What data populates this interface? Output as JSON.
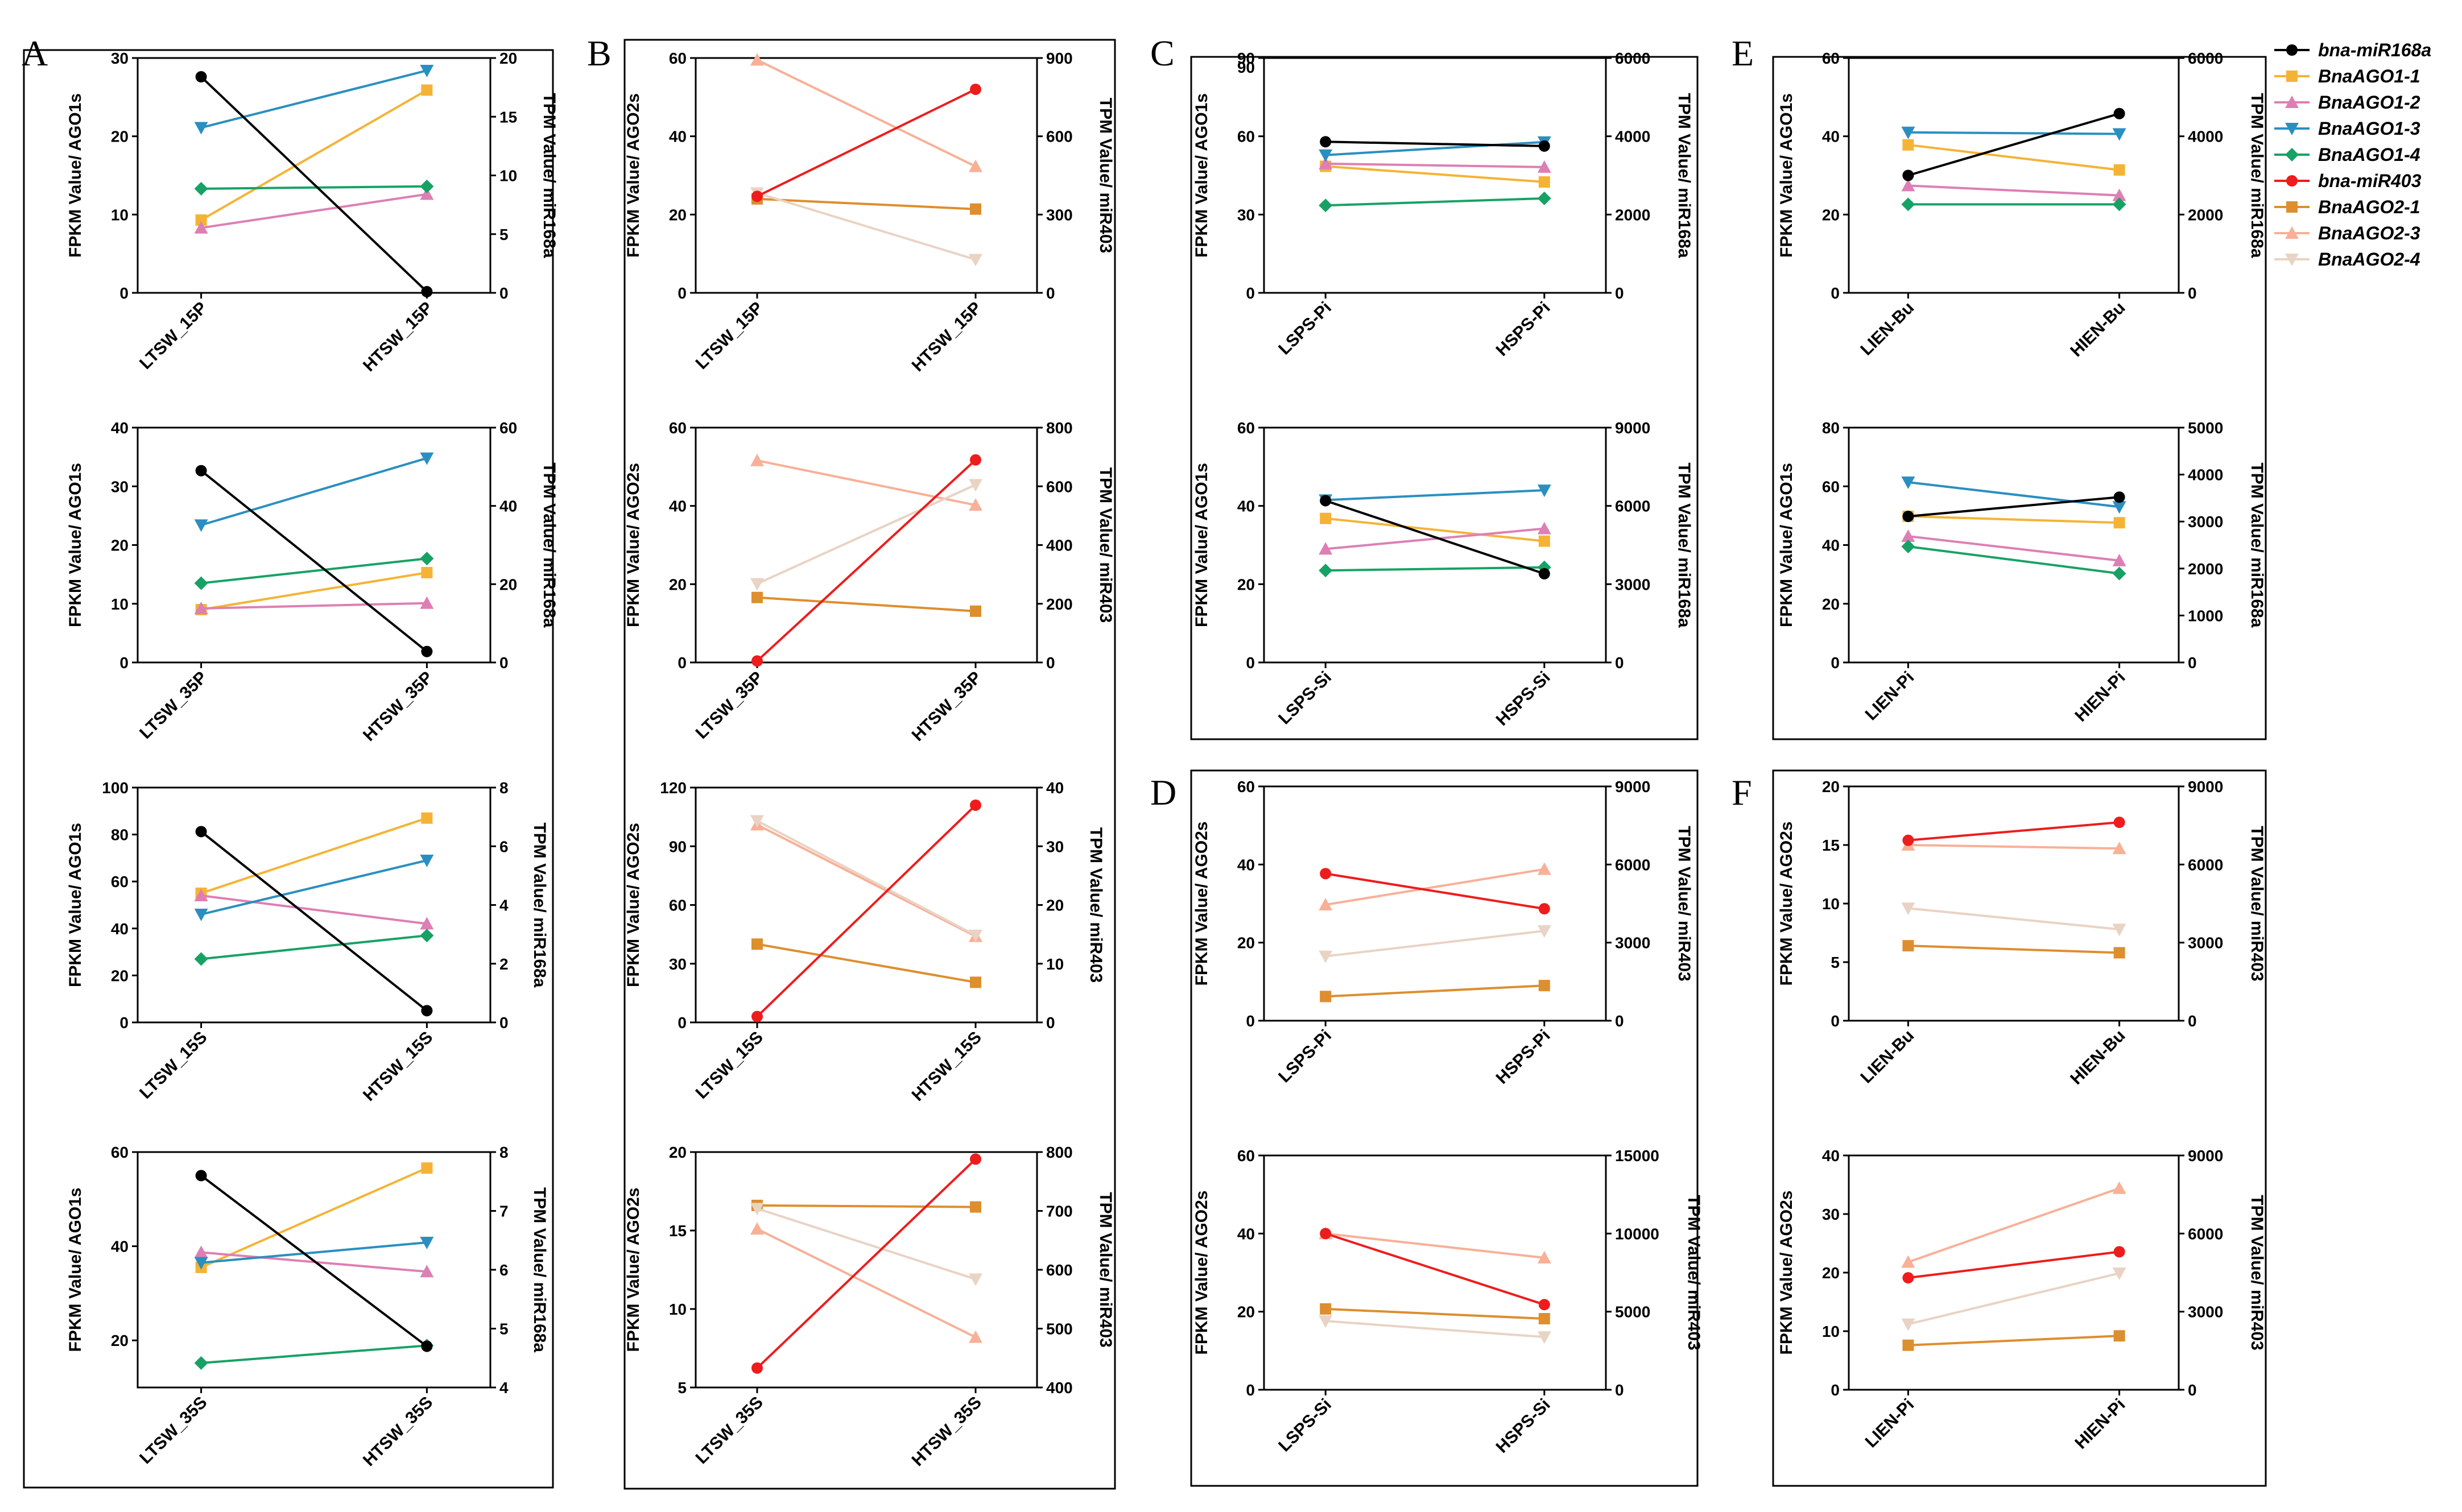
{
  "legend": [
    {
      "key": "mir168",
      "name": "bna-miR168a",
      "color": "#000000",
      "marker": "circle"
    },
    {
      "key": "ago11",
      "name": "BnaAGO1-1",
      "color": "#F5B335",
      "marker": "square"
    },
    {
      "key": "ago12",
      "name": "BnaAGO1-2",
      "color": "#DD7FB4",
      "marker": "triangle-up"
    },
    {
      "key": "ago13",
      "name": "BnaAGO1-3",
      "color": "#2A8FC0",
      "marker": "triangle-down"
    },
    {
      "key": "ago14",
      "name": "BnaAGO1-4",
      "color": "#17A265",
      "marker": "diamond"
    },
    {
      "key": "mir403",
      "name": "bna-miR403",
      "color": "#EE1C1C",
      "marker": "circle"
    },
    {
      "key": "ago21",
      "name": "BnaAGO2-1",
      "color": "#DD8E2F",
      "marker": "square"
    },
    {
      "key": "ago23",
      "name": "BnaAGO2-3",
      "color": "#F8B097",
      "marker": "triangle-up"
    },
    {
      "key": "ago24",
      "name": "BnaAGO2-4",
      "color": "#E9D3C4",
      "marker": "triangle-down"
    }
  ],
  "panels": [
    {
      "letter": "A"
    },
    {
      "letter": "B"
    },
    {
      "letter": "C"
    },
    {
      "letter": "D"
    },
    {
      "letter": "E"
    },
    {
      "letter": "F"
    }
  ],
  "chart_data": [
    {
      "type": "line",
      "panel": "A",
      "categories": [
        "LTSW_15P",
        "HTSW_15P"
      ],
      "ylabel": "FPKM Value/ AGO1s",
      "y2label": "TPM Value/ miR168a",
      "ylim": [
        0,
        30
      ],
      "yticks": [
        0,
        10,
        20,
        30
      ],
      "y2lim": [
        0,
        20
      ],
      "y2ticks": [
        0,
        5,
        10,
        15,
        20
      ],
      "series": [
        {
          "key": "ago11",
          "values": [
            9.3,
            25.9
          ]
        },
        {
          "key": "ago12",
          "values": [
            8.3,
            12.6
          ]
        },
        {
          "key": "ago13",
          "values": [
            21.1,
            28.4
          ]
        },
        {
          "key": "ago14",
          "values": [
            13.3,
            13.6
          ]
        },
        {
          "key": "mir168",
          "axis": "right",
          "values": [
            18.4,
            0.1
          ]
        }
      ]
    },
    {
      "type": "line",
      "panel": "A",
      "categories": [
        "LTSW_35P",
        "HTSW_35P"
      ],
      "ylabel": "FPKM Value/ AGO1s",
      "y2label": "TPM Value/ miR168a",
      "ylim": [
        0,
        40
      ],
      "yticks": [
        0,
        10,
        20,
        30,
        40
      ],
      "y2lim": [
        0,
        60
      ],
      "y2ticks": [
        0,
        20,
        40,
        60
      ],
      "series": [
        {
          "key": "ago11",
          "values": [
            9.0,
            15.3
          ]
        },
        {
          "key": "ago12",
          "values": [
            9.2,
            10.1
          ]
        },
        {
          "key": "ago13",
          "values": [
            23.4,
            34.8
          ]
        },
        {
          "key": "ago14",
          "values": [
            13.5,
            17.7
          ]
        },
        {
          "key": "mir168",
          "axis": "right",
          "values": [
            49.0,
            2.8
          ]
        }
      ]
    },
    {
      "type": "line",
      "panel": "A",
      "categories": [
        "LTSW_15S",
        "HTSW_15S"
      ],
      "ylabel": "FPKM Value/ AGO1s",
      "y2label": "TPM Value/ miR168a",
      "ylim": [
        0,
        100
      ],
      "yticks": [
        0,
        20,
        40,
        60,
        80,
        100
      ],
      "y2lim": [
        0,
        8
      ],
      "y2ticks": [
        0,
        2,
        4,
        6,
        8
      ],
      "series": [
        {
          "key": "ago11",
          "values": [
            55,
            87
          ]
        },
        {
          "key": "ago12",
          "values": [
            54,
            42
          ]
        },
        {
          "key": "ago13",
          "values": [
            46,
            69
          ]
        },
        {
          "key": "ago14",
          "values": [
            27,
            37
          ]
        },
        {
          "key": "mir168",
          "axis": "right",
          "values": [
            6.5,
            0.4
          ]
        }
      ]
    },
    {
      "type": "line",
      "panel": "A",
      "categories": [
        "LTSW_35S",
        "HTSW_35S"
      ],
      "ylabel": "FPKM Value/ AGO1s",
      "y2label": "TPM Value/ miR168a",
      "ylim": [
        10,
        60
      ],
      "yticks": [
        20,
        40,
        60
      ],
      "y2lim": [
        4,
        8
      ],
      "y2ticks": [
        4,
        5,
        6,
        7,
        8
      ],
      "series": [
        {
          "key": "ago11",
          "values": [
            35.5,
            56.6
          ]
        },
        {
          "key": "ago12",
          "values": [
            38.7,
            34.6
          ]
        },
        {
          "key": "ago13",
          "values": [
            36.5,
            40.8
          ]
        },
        {
          "key": "ago14",
          "values": [
            15.2,
            18.9
          ]
        },
        {
          "key": "mir168",
          "axis": "right",
          "values": [
            7.6,
            4.7
          ]
        }
      ]
    },
    {
      "type": "line",
      "panel": "B",
      "categories": [
        "LTSW_15P",
        "HTSW_15P"
      ],
      "ylabel": "FPKM Value/ AGO2s",
      "y2label": "TPM Value/ miR403",
      "ylim": [
        0,
        60
      ],
      "yticks": [
        0,
        20,
        40,
        60
      ],
      "y2lim": [
        0,
        900
      ],
      "y2ticks": [
        0,
        300,
        600,
        900
      ],
      "series": [
        {
          "key": "ago21",
          "values": [
            24.0,
            21.4
          ]
        },
        {
          "key": "ago23",
          "values": [
            59.5,
            32.3
          ]
        },
        {
          "key": "ago24",
          "values": [
            25.5,
            8.5
          ]
        },
        {
          "key": "mir403",
          "axis": "right",
          "values": [
            370,
            780
          ]
        }
      ]
    },
    {
      "type": "line",
      "panel": "B",
      "categories": [
        "LTSW_35P",
        "HTSW_35P"
      ],
      "ylabel": "FPKM Value/ AGO2s",
      "y2label": "TPM Value/ miR403",
      "ylim": [
        0,
        60
      ],
      "yticks": [
        0,
        20,
        40,
        60
      ],
      "y2lim": [
        0,
        800
      ],
      "y2ticks": [
        0,
        200,
        400,
        600,
        800
      ],
      "series": [
        {
          "key": "ago21",
          "values": [
            16.6,
            13.1
          ]
        },
        {
          "key": "ago23",
          "values": [
            51.6,
            40.2
          ]
        },
        {
          "key": "ago24",
          "values": [
            20.1,
            45.4
          ]
        },
        {
          "key": "mir403",
          "axis": "right",
          "values": [
            5,
            690
          ]
        }
      ]
    },
    {
      "type": "line",
      "panel": "B",
      "categories": [
        "LTSW_15S",
        "HTSW_15S"
      ],
      "ylabel": "FPKM Value/ AGO2s",
      "y2label": "TPM Value/ miR403",
      "ylim": [
        0,
        120
      ],
      "yticks": [
        0,
        30,
        60,
        90,
        120
      ],
      "y2lim": [
        0,
        40
      ],
      "y2ticks": [
        0,
        10,
        20,
        30,
        40
      ],
      "series": [
        {
          "key": "ago21",
          "values": [
            40,
            20.5
          ]
        },
        {
          "key": "ago23",
          "values": [
            101,
            44
          ]
        },
        {
          "key": "ago24",
          "values": [
            103,
            44.5
          ]
        },
        {
          "key": "mir403",
          "axis": "right",
          "values": [
            1.0,
            37.0
          ]
        }
      ]
    },
    {
      "type": "line",
      "panel": "B",
      "categories": [
        "LTSW_35S",
        "HTSW_35S"
      ],
      "ylabel": "FPKM Value/ AGO2s",
      "y2label": "TPM Value/ miR403",
      "ylim": [
        5,
        20
      ],
      "yticks": [
        5,
        10,
        15,
        20
      ],
      "y2lim": [
        400,
        800
      ],
      "y2ticks": [
        400,
        500,
        600,
        700,
        800
      ],
      "series": [
        {
          "key": "ago21",
          "values": [
            16.6,
            16.5
          ]
        },
        {
          "key": "ago23",
          "values": [
            15.1,
            8.2
          ]
        },
        {
          "key": "ago24",
          "values": [
            16.4,
            11.9
          ]
        },
        {
          "key": "mir403",
          "axis": "right",
          "values": [
            433,
            788
          ]
        }
      ]
    },
    {
      "type": "line",
      "panel": "C",
      "categories": [
        "LSPS-Pi",
        "HSPS-Pi"
      ],
      "ylabel": "FPKM Value/ AGO1s",
      "y2label": "TPM Value/ miR168a",
      "ylim": [
        0,
        90
      ],
      "yticks": [
        0,
        30,
        60,
        90
      ],
      "extra_tick": "90",
      "y2lim": [
        0,
        6000
      ],
      "y2ticks": [
        0,
        2000,
        4000,
        6000
      ],
      "series": [
        {
          "key": "ago11",
          "values": [
            48.5,
            42.5
          ]
        },
        {
          "key": "ago12",
          "values": [
            49.5,
            48.2
          ]
        },
        {
          "key": "ago13",
          "values": [
            52.8,
            57.8
          ]
        },
        {
          "key": "ago14",
          "values": [
            33.5,
            36.2
          ]
        },
        {
          "key": "mir168",
          "axis": "right",
          "values": [
            3860,
            3750
          ]
        }
      ]
    },
    {
      "type": "line",
      "panel": "C",
      "categories": [
        "LSPS-Si",
        "HSPS-Si"
      ],
      "ylabel": "FPKM Value/ AGO1s",
      "y2label": "TPM Value/ miR168a",
      "ylim": [
        0,
        60
      ],
      "yticks": [
        0,
        20,
        40,
        60
      ],
      "y2lim": [
        0,
        9000
      ],
      "y2ticks": [
        0,
        3000,
        6000,
        9000
      ],
      "series": [
        {
          "key": "ago11",
          "values": [
            36.8,
            31.0
          ]
        },
        {
          "key": "ago12",
          "values": [
            29.0,
            34.2
          ]
        },
        {
          "key": "ago13",
          "values": [
            41.5,
            44.0
          ]
        },
        {
          "key": "ago14",
          "values": [
            23.5,
            24.3
          ]
        },
        {
          "key": "mir168",
          "axis": "right",
          "values": [
            6200,
            3400
          ]
        }
      ]
    },
    {
      "type": "line",
      "panel": "D",
      "categories": [
        "LSPS-Pi",
        "HSPS-Pi"
      ],
      "ylabel": "FPKM Value/ AGO2s",
      "y2label": "TPM Value/ miR403",
      "ylim": [
        0,
        60
      ],
      "yticks": [
        0,
        20,
        40,
        60
      ],
      "y2lim": [
        0,
        9000
      ],
      "y2ticks": [
        0,
        3000,
        6000,
        9000
      ],
      "series": [
        {
          "key": "ago21",
          "values": [
            6.2,
            9.0
          ]
        },
        {
          "key": "ago23",
          "values": [
            29.7,
            38.8
          ]
        },
        {
          "key": "ago24",
          "values": [
            16.5,
            23.0
          ]
        },
        {
          "key": "mir403",
          "axis": "right",
          "values": [
            5650,
            4300
          ]
        }
      ]
    },
    {
      "type": "line",
      "panel": "D",
      "categories": [
        "LSPS-Si",
        "HSPS-Si"
      ],
      "ylabel": "FPKM Value/ AGO2s",
      "y2label": "TPM Value/ miR403",
      "ylim": [
        0,
        60
      ],
      "yticks": [
        0,
        20,
        40,
        60
      ],
      "y2lim": [
        0,
        15000
      ],
      "y2ticks": [
        0,
        5000,
        10000,
        15000
      ],
      "series": [
        {
          "key": "ago21",
          "values": [
            20.7,
            18.2
          ]
        },
        {
          "key": "ago23",
          "values": [
            40.0,
            33.8
          ]
        },
        {
          "key": "ago24",
          "values": [
            17.6,
            13.5
          ]
        },
        {
          "key": "mir403",
          "axis": "right",
          "values": [
            10000,
            5450
          ]
        }
      ]
    },
    {
      "type": "line",
      "panel": "E",
      "categories": [
        "LIEN-Bu",
        "HIEN-Bu"
      ],
      "ylabel": "FPKM Value/ AGO1s",
      "y2label": "TPM Value/ miR168a",
      "ylim": [
        0,
        60
      ],
      "yticks": [
        0,
        20,
        40,
        60
      ],
      "y2lim": [
        0,
        6000
      ],
      "y2ticks": [
        0,
        2000,
        4000,
        6000
      ],
      "series": [
        {
          "key": "ago11",
          "values": [
            37.8,
            31.4
          ]
        },
        {
          "key": "ago12",
          "values": [
            27.4,
            24.9
          ]
        },
        {
          "key": "ago13",
          "values": [
            41.0,
            40.6
          ]
        },
        {
          "key": "ago14",
          "values": [
            22.6,
            22.6
          ]
        },
        {
          "key": "mir168",
          "axis": "right",
          "values": [
            3000,
            4580
          ]
        }
      ]
    },
    {
      "type": "line",
      "panel": "E",
      "categories": [
        "LIEN-Pi",
        "HIEN-Pi"
      ],
      "ylabel": "FPKM Value/ AGO1s",
      "y2label": "TPM Value/ miR168a",
      "ylim": [
        0,
        80
      ],
      "yticks": [
        0,
        20,
        40,
        60,
        80
      ],
      "y2lim": [
        0,
        5000
      ],
      "y2ticks": [
        0,
        1000,
        2000,
        3000,
        4000,
        5000
      ],
      "series": [
        {
          "key": "ago11",
          "values": [
            49.8,
            47.6
          ]
        },
        {
          "key": "ago12",
          "values": [
            43.0,
            34.7
          ]
        },
        {
          "key": "ago13",
          "values": [
            61.4,
            53.0
          ]
        },
        {
          "key": "ago14",
          "values": [
            39.5,
            30.3
          ]
        },
        {
          "key": "mir168",
          "axis": "right",
          "values": [
            3110,
            3520
          ]
        }
      ]
    },
    {
      "type": "line",
      "panel": "F",
      "categories": [
        "LIEN-Bu",
        "HIEN-Bu"
      ],
      "ylabel": "FPKM Value/ AGO2s",
      "y2label": "TPM Value/ miR403",
      "ylim": [
        0,
        20
      ],
      "yticks": [
        0,
        5,
        10,
        15,
        20
      ],
      "y2lim": [
        0,
        9000
      ],
      "y2ticks": [
        0,
        3000,
        6000,
        9000
      ],
      "series": [
        {
          "key": "ago21",
          "values": [
            6.4,
            5.8
          ]
        },
        {
          "key": "ago23",
          "values": [
            15.0,
            14.7
          ]
        },
        {
          "key": "ago24",
          "values": [
            9.6,
            7.8
          ]
        },
        {
          "key": "mir403",
          "axis": "right",
          "values": [
            6930,
            7620
          ]
        }
      ]
    },
    {
      "type": "line",
      "panel": "F",
      "categories": [
        "LIEN-Pi",
        "HIEN-Pi"
      ],
      "ylabel": "FPKM Value/ AGO2s",
      "y2label": "TPM Value/ miR403",
      "ylim": [
        0,
        40
      ],
      "yticks": [
        0,
        10,
        20,
        30,
        40
      ],
      "y2lim": [
        0,
        9000
      ],
      "y2ticks": [
        0,
        3000,
        6000,
        9000
      ],
      "series": [
        {
          "key": "ago21",
          "values": [
            7.6,
            9.2
          ]
        },
        {
          "key": "ago23",
          "values": [
            21.8,
            34.4
          ]
        },
        {
          "key": "ago24",
          "values": [
            11.2,
            19.9
          ]
        },
        {
          "key": "mir403",
          "axis": "right",
          "values": [
            4300,
            5300
          ]
        }
      ]
    }
  ]
}
